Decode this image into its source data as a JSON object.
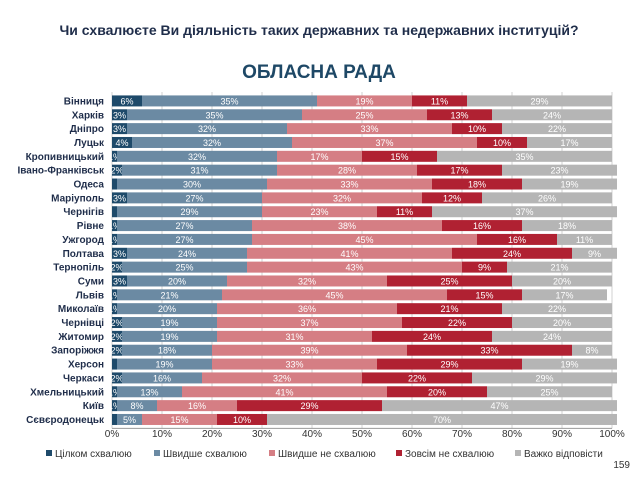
{
  "title": "Чи схвалюєте Ви діяльність таких державних та недержавних інституцій?",
  "subtitle": "ОБЛАСНА РАДА",
  "page_number": "159",
  "colors": {
    "fully_approve": "#1e4a6a",
    "rather_approve": "#6b8aa3",
    "rather_disapprove": "#d57e84",
    "fully_disapprove": "#b02132",
    "hard_to_say": "#b5b5b5"
  },
  "chart_data": {
    "type": "bar",
    "orientation": "horizontal",
    "stacked": true,
    "categories": [
      "Вінниця",
      "Харків",
      "Дніпро",
      "Луцьк",
      "Кропивницький",
      "Івано-Франківськ",
      "Одеса",
      "Маріуполь",
      "Чернігів",
      "Рівне",
      "Ужгород",
      "Полтава",
      "Тернопіль",
      "Суми",
      "Львів",
      "Миколаїв",
      "Чернівці",
      "Житомир",
      "Запоріжжя",
      "Херсон",
      "Черкаси",
      "Хмельницький",
      "Київ",
      "Сєвєродонецьк"
    ],
    "series": [
      {
        "name": "Цілком схвалюю",
        "values": [
          6,
          3,
          3,
          4,
          1,
          2,
          1,
          3,
          1,
          1,
          1,
          3,
          2,
          3,
          1,
          1,
          2,
          2,
          2,
          1,
          2,
          1,
          1,
          1
        ],
        "labels": [
          "6%",
          "3%",
          "3%",
          "4%",
          "1%",
          "2%",
          "",
          "3%",
          "",
          "1%",
          "1%",
          "3%",
          "2%",
          "3%",
          "1%",
          "1%",
          "2%",
          "2%",
          "2%",
          "",
          "2%",
          "1%",
          "1%",
          ""
        ]
      },
      {
        "name": "Швидше схвалюю",
        "values": [
          35,
          35,
          32,
          32,
          32,
          31,
          30,
          27,
          29,
          27,
          27,
          24,
          25,
          20,
          21,
          20,
          19,
          19,
          18,
          19,
          16,
          13,
          8,
          5
        ],
        "labels": [
          "35%",
          "35%",
          "32%",
          "32%",
          "32%",
          "31%",
          "30%",
          "27%",
          "29%",
          "27%",
          "27%",
          "24%",
          "25%",
          "20%",
          "21%",
          "20%",
          "19%",
          "19%",
          "18%",
          "19%",
          "16%",
          "13%",
          "8%",
          "5%"
        ]
      },
      {
        "name": "Швидше не схвалюю",
        "values": [
          19,
          25,
          33,
          37,
          17,
          28,
          33,
          32,
          23,
          38,
          45,
          41,
          43,
          32,
          45,
          36,
          37,
          31,
          39,
          33,
          32,
          41,
          16,
          15
        ],
        "labels": [
          "19%",
          "25%",
          "33%",
          "37%",
          "17%",
          "28%",
          "33%",
          "32%",
          "23%",
          "38%",
          "45%",
          "41%",
          "43%",
          "32%",
          "45%",
          "36%",
          "37%",
          "31%",
          "39%",
          "33%",
          "32%",
          "41%",
          "16%",
          "15%"
        ]
      },
      {
        "name": "Зовсім не схвалюю",
        "values": [
          11,
          13,
          10,
          10,
          15,
          17,
          18,
          12,
          11,
          16,
          16,
          24,
          9,
          25,
          15,
          21,
          22,
          24,
          33,
          29,
          22,
          20,
          29,
          10
        ],
        "labels": [
          "11%",
          "13%",
          "10%",
          "10%",
          "15%",
          "17%",
          "18%",
          "12%",
          "11%",
          "16%",
          "16%",
          "24%",
          "9%",
          "25%",
          "15%",
          "21%",
          "22%",
          "24%",
          "33%",
          "29%",
          "22%",
          "20%",
          "29%",
          "10%"
        ]
      },
      {
        "name": "Важко відповісти",
        "values": [
          29,
          24,
          22,
          17,
          35,
          23,
          19,
          26,
          37,
          18,
          11,
          9,
          21,
          20,
          17,
          22,
          20,
          24,
          8,
          19,
          29,
          25,
          47,
          70
        ],
        "labels": [
          "29%",
          "24%",
          "22%",
          "17%",
          "35%",
          "23%",
          "19%",
          "26%",
          "37%",
          "18%",
          "11%",
          "9%",
          "21%",
          "20%",
          "17%",
          "22%",
          "20%",
          "24%",
          "8%",
          "19%",
          "29%",
          "25%",
          "47%",
          "70%"
        ]
      }
    ],
    "xlim": [
      0,
      100
    ],
    "x_ticks": [
      "0%",
      "10%",
      "20%",
      "30%",
      "40%",
      "50%",
      "60%",
      "70%",
      "80%",
      "90%",
      "100%"
    ],
    "grid": true,
    "legend_position": "bottom"
  }
}
